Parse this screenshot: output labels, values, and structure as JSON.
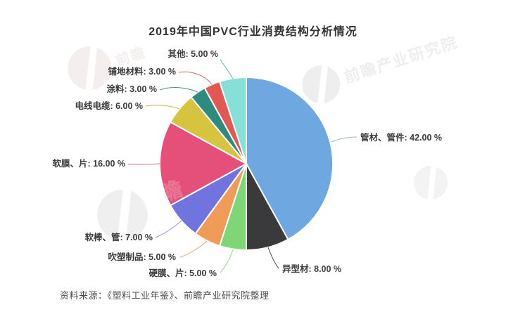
{
  "chart_data": {
    "type": "pie",
    "title": "2019年中国PVC行业消费结构分析情况",
    "unit": "%",
    "direction": "clockwise",
    "start_angle_deg": 0,
    "segments": [
      {
        "id": "pipes-fittings",
        "label": "管材、管件",
        "value": 42.0,
        "color": "#6fa8e0",
        "line_color": "#9cb8d6"
      },
      {
        "id": "profiles",
        "label": "异型材",
        "value": 8.0,
        "color": "#3a3a3c",
        "line_color": "#4b4b4d"
      },
      {
        "id": "rigid-film-sheet",
        "label": "硬膜、片",
        "value": 5.0,
        "color": "#7ed677",
        "line_color": "#9ccf97"
      },
      {
        "id": "blow-molded-products",
        "label": "吹塑制品",
        "value": 5.0,
        "color": "#f09b57",
        "line_color": "#dba377"
      },
      {
        "id": "soft-rod-tube",
        "label": "软棒、管",
        "value": 7.0,
        "color": "#7173de",
        "line_color": "#9193d8"
      },
      {
        "id": "soft-film-sheet",
        "label": "软膜、片",
        "value": 16.0,
        "color": "#e5507a",
        "line_color": "#e06a8e"
      },
      {
        "id": "wire-cable",
        "label": "电线电缆",
        "value": 6.0,
        "color": "#d6c43f",
        "line_color": "#c9b83e"
      },
      {
        "id": "coatings",
        "label": "涂料",
        "value": 3.0,
        "color": "#2e8c7e",
        "line_color": "#3f9488"
      },
      {
        "id": "flooring-materials",
        "label": "铺地材料",
        "value": 3.0,
        "color": "#e25853",
        "line_color": "#d96862"
      },
      {
        "id": "other",
        "label": "其他",
        "value": 5.0,
        "color": "#87e0d8",
        "line_color": "#57b8ae"
      }
    ]
  },
  "source": {
    "text": "资料来源：《塑料工业年鉴》、前瞻产业研究院整理"
  },
  "watermark": {
    "text": "前瞻产业研究院",
    "short": "前瞻"
  },
  "colors": {
    "title_text": "#333333",
    "label_text": "#3b3b3b",
    "source_text": "#4d4d4d",
    "background": "#ffffff"
  }
}
